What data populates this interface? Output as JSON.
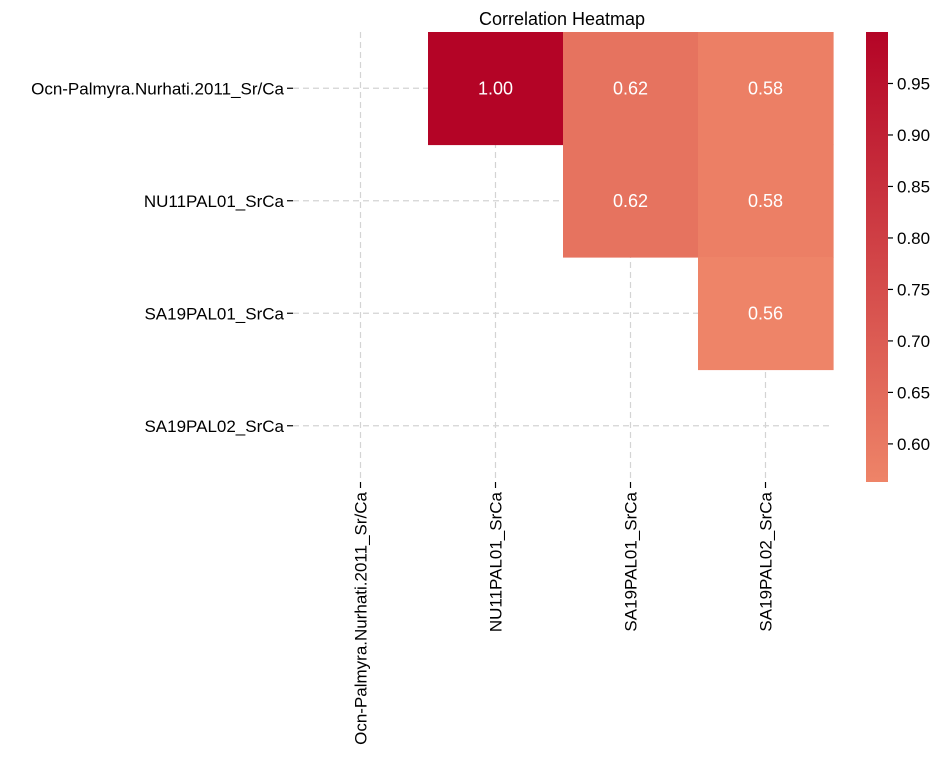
{
  "chart_data": {
    "type": "heatmap",
    "title": "Correlation Heatmap",
    "xlabel": "",
    "ylabel": "",
    "x_labels": [
      "Ocn-Palmyra.Nurhati.2011_Sr/Ca",
      "NU11PAL01_SrCa",
      "SA19PAL01_SrCa",
      "SA19PAL02_SrCa"
    ],
    "y_labels": [
      "Ocn-Palmyra.Nurhati.2011_Sr/Ca",
      "NU11PAL01_SrCa",
      "SA19PAL01_SrCa",
      "SA19PAL02_SrCa"
    ],
    "matrix": [
      [
        null,
        1.0,
        0.62,
        0.58
      ],
      [
        null,
        null,
        0.62,
        0.58
      ],
      [
        null,
        null,
        null,
        0.56
      ],
      [
        null,
        null,
        null,
        null
      ]
    ],
    "annotations": [
      [
        "",
        "1.00",
        "0.62",
        "0.58"
      ],
      [
        "",
        "",
        "0.62",
        "0.58"
      ],
      [
        "",
        "",
        "",
        "0.56"
      ],
      [
        "",
        "",
        "",
        ""
      ]
    ],
    "colorscale": {
      "name": "coolwarm",
      "min": 0.563,
      "max": 1.0,
      "low_color": "#ee8468",
      "high_color": "#b40426"
    },
    "colorbar_ticks": [
      "0.60",
      "0.65",
      "0.70",
      "0.75",
      "0.80",
      "0.85",
      "0.90",
      "0.95"
    ],
    "colorbar_tick_values": [
      0.6,
      0.65,
      0.7,
      0.75,
      0.8,
      0.85,
      0.9,
      0.95
    ],
    "grid": true,
    "grid_style": "dashed",
    "mask": "lower-triangle-and-diagonal"
  }
}
